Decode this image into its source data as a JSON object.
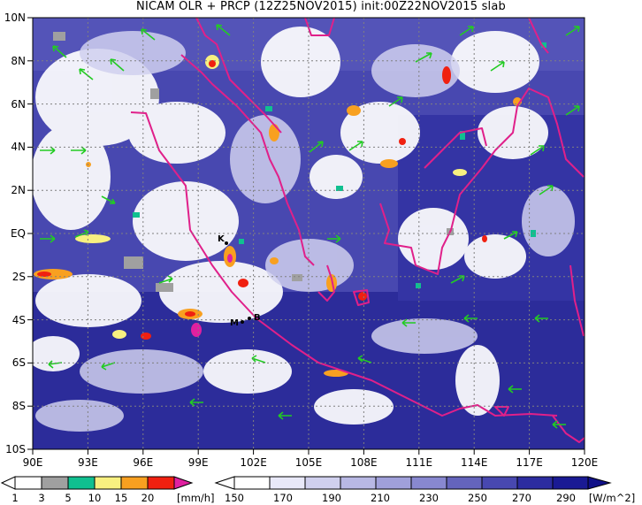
{
  "title": "NICAM OLR + PRCP (12Z25NOV2015) init:00Z22NOV2015 slab",
  "lat_labels": [
    "10N",
    "8N",
    "6N",
    "4N",
    "2N",
    "EQ",
    "2S",
    "4S",
    "6S",
    "8S",
    "10S"
  ],
  "lon_labels": [
    "90E",
    "93E",
    "96E",
    "99E",
    "102E",
    "105E",
    "108E",
    "111E",
    "114E",
    "117E",
    "120E"
  ],
  "city_labels": [
    "K",
    "M",
    "B"
  ],
  "precip_bar": {
    "unit": "[mm/h]",
    "ticks": [
      "1",
      "3",
      "5",
      "10",
      "15",
      "20"
    ],
    "colors": [
      "#ffffff",
      "#a0a0a0",
      "#10c090",
      "#f8f080",
      "#f8a020",
      "#f02010",
      "#e020a0"
    ]
  },
  "olr_bar": {
    "unit": "[W/m^2]",
    "ticks": [
      "150",
      "170",
      "190",
      "210",
      "230",
      "250",
      "270",
      "290"
    ],
    "colors": [
      "#ffffff",
      "#e8e8f8",
      "#d0d0ee",
      "#b8b8e4",
      "#a0a0da",
      "#8888d0",
      "#7070c4",
      "#5858b8",
      "#4040aa",
      "#28289c",
      "#141490"
    ]
  },
  "colors": {
    "coast": "#e0208a",
    "wind": "#22cc22",
    "ocean_dark": "#2a2aa0",
    "cloud": "#ffffff"
  }
}
